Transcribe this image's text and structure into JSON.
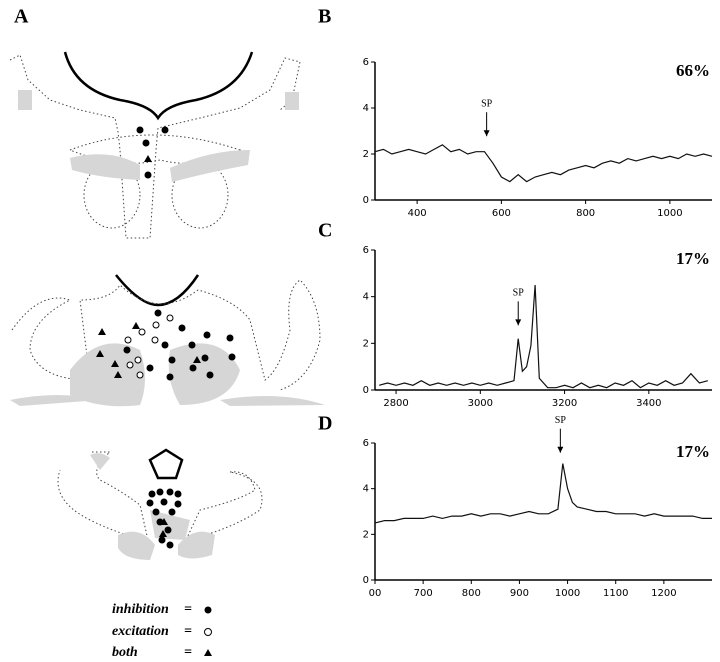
{
  "panel_labels": [
    "A",
    "B",
    "C",
    "D"
  ],
  "legend": [
    "inhibition",
    "excitation",
    "both"
  ],
  "legend_sign": "=",
  "chart_data": [
    {
      "type": "line",
      "panel": "B",
      "corner_label": "66%",
      "color": "#111",
      "annotation": {
        "text": "SP",
        "x": 565,
        "y": 2.6
      },
      "x": [
        300,
        320,
        340,
        360,
        380,
        400,
        420,
        440,
        460,
        480,
        500,
        520,
        540,
        560,
        580,
        600,
        620,
        640,
        660,
        680,
        700,
        720,
        740,
        760,
        780,
        800,
        820,
        840,
        860,
        880,
        900,
        920,
        940,
        960,
        980,
        1000,
        1020,
        1040,
        1060,
        1080,
        1100
      ],
      "values": [
        2.1,
        2.2,
        2.0,
        2.1,
        2.2,
        2.1,
        2.0,
        2.2,
        2.4,
        2.1,
        2.2,
        2.0,
        2.1,
        2.1,
        1.6,
        1.0,
        0.8,
        1.1,
        0.8,
        1.0,
        1.1,
        1.2,
        1.1,
        1.3,
        1.4,
        1.5,
        1.4,
        1.6,
        1.7,
        1.6,
        1.8,
        1.7,
        1.8,
        1.9,
        1.8,
        1.9,
        1.8,
        2.0,
        1.9,
        2.0,
        1.9
      ],
      "xlim": [
        300,
        1100
      ],
      "xticks": [
        400,
        600,
        800,
        1000
      ],
      "ylim": [
        0,
        6
      ],
      "yticks": [
        0,
        2,
        4,
        6
      ]
    },
    {
      "type": "line",
      "panel": "C",
      "corner_label": "17%",
      "color": "#111",
      "annotation": {
        "text": "SP",
        "x": 3090,
        "y": 2.6
      },
      "x": [
        2760,
        2780,
        2800,
        2820,
        2840,
        2860,
        2880,
        2900,
        2920,
        2940,
        2960,
        2980,
        3000,
        3020,
        3040,
        3060,
        3080,
        3090,
        3100,
        3110,
        3120,
        3130,
        3140,
        3160,
        3180,
        3200,
        3220,
        3240,
        3260,
        3280,
        3300,
        3320,
        3340,
        3360,
        3380,
        3400,
        3420,
        3440,
        3460,
        3480,
        3500,
        3520,
        3540
      ],
      "values": [
        0.2,
        0.3,
        0.2,
        0.3,
        0.2,
        0.4,
        0.2,
        0.3,
        0.2,
        0.3,
        0.2,
        0.3,
        0.2,
        0.3,
        0.2,
        0.3,
        0.4,
        2.2,
        0.8,
        1.0,
        1.9,
        4.5,
        0.5,
        0.1,
        0.1,
        0.2,
        0.1,
        0.3,
        0.1,
        0.2,
        0.1,
        0.3,
        0.2,
        0.4,
        0.1,
        0.3,
        0.2,
        0.4,
        0.2,
        0.3,
        0.7,
        0.3,
        0.4
      ],
      "xlim": [
        2750,
        3550
      ],
      "xticks": [
        2800,
        3000,
        3200,
        3400
      ],
      "ylim": [
        0,
        6
      ],
      "yticks": [
        0,
        2,
        4,
        6
      ]
    },
    {
      "type": "line",
      "panel": "D",
      "corner_label": "17%",
      "color": "#111",
      "annotation": {
        "text": "SP",
        "x": 985,
        "y": 5.4
      },
      "x": [
        600,
        620,
        640,
        660,
        680,
        700,
        720,
        740,
        760,
        780,
        800,
        820,
        840,
        860,
        880,
        900,
        920,
        940,
        960,
        980,
        990,
        1000,
        1010,
        1020,
        1040,
        1060,
        1080,
        1100,
        1120,
        1140,
        1160,
        1180,
        1200,
        1220,
        1240,
        1260,
        1280,
        1300
      ],
      "values": [
        2.5,
        2.6,
        2.6,
        2.7,
        2.7,
        2.7,
        2.8,
        2.7,
        2.8,
        2.8,
        2.9,
        2.8,
        2.9,
        2.9,
        2.8,
        2.9,
        3.0,
        2.9,
        2.9,
        3.1,
        5.1,
        4.0,
        3.4,
        3.2,
        3.1,
        3.0,
        3.0,
        2.9,
        2.9,
        2.9,
        2.8,
        2.9,
        2.8,
        2.8,
        2.8,
        2.8,
        2.7,
        2.7
      ],
      "xlim": [
        600,
        1300
      ],
      "xticks": [
        {
          "value": 600,
          "label": "00"
        },
        700,
        800,
        900,
        1000,
        1100,
        1200
      ],
      "ylim": [
        0,
        6
      ],
      "yticks": [
        0,
        2,
        4,
        6
      ]
    }
  ]
}
